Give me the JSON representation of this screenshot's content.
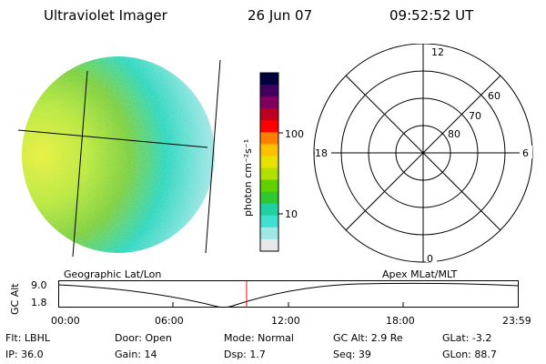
{
  "header": {
    "title": "Ultraviolet Imager",
    "date": "26 Jun 07",
    "time": "09:52:52 UT"
  },
  "colorbar": {
    "unit_label": "photon cm⁻²s⁻¹",
    "ticks": [
      "100",
      "10"
    ],
    "colors": [
      "#000040",
      "#400060",
      "#800060",
      "#c00020",
      "#ff0000",
      "#ff8000",
      "#ffc000",
      "#e8e000",
      "#b0e000",
      "#60d000",
      "#30c830",
      "#20d0a0",
      "#40e0d0",
      "#a0e8e8",
      "#e8e8e8"
    ]
  },
  "image_panel": {
    "colors": {
      "bright": "#e8f040",
      "mid": "#80d040",
      "low": "#30d8c0",
      "faint": "#c8ecec"
    }
  },
  "polar_plot": {
    "mlt_labels": {
      "top": "12",
      "left": "18",
      "right": "6",
      "bottom": "0"
    },
    "lat_labels": [
      "60",
      "70",
      "80"
    ]
  },
  "timeline": {
    "left_label": "Geographic Lat/Lon",
    "right_label": "Apex MLat/MLT",
    "axis_title": "GC Alt",
    "y_ticks": [
      "9.0",
      "1.8"
    ],
    "x_ticks": [
      "00:00",
      "06:00",
      "12:00",
      "18:00",
      "23:59"
    ],
    "marker_color": "#ff0000"
  },
  "info": {
    "row1": {
      "filter": "Flt: LBHL",
      "door": "Door: Open",
      "mode": "Mode: Normal",
      "gc_alt": "GC Alt: 2.9 Re",
      "glat": "GLat:  -3.2"
    },
    "row2": {
      "ip": "IP: 36.0",
      "gain": "Gain: 14",
      "dsp": "Dsp:     1.7",
      "seq": "Seq: 39",
      "glon": "GLon:  88.7"
    }
  }
}
